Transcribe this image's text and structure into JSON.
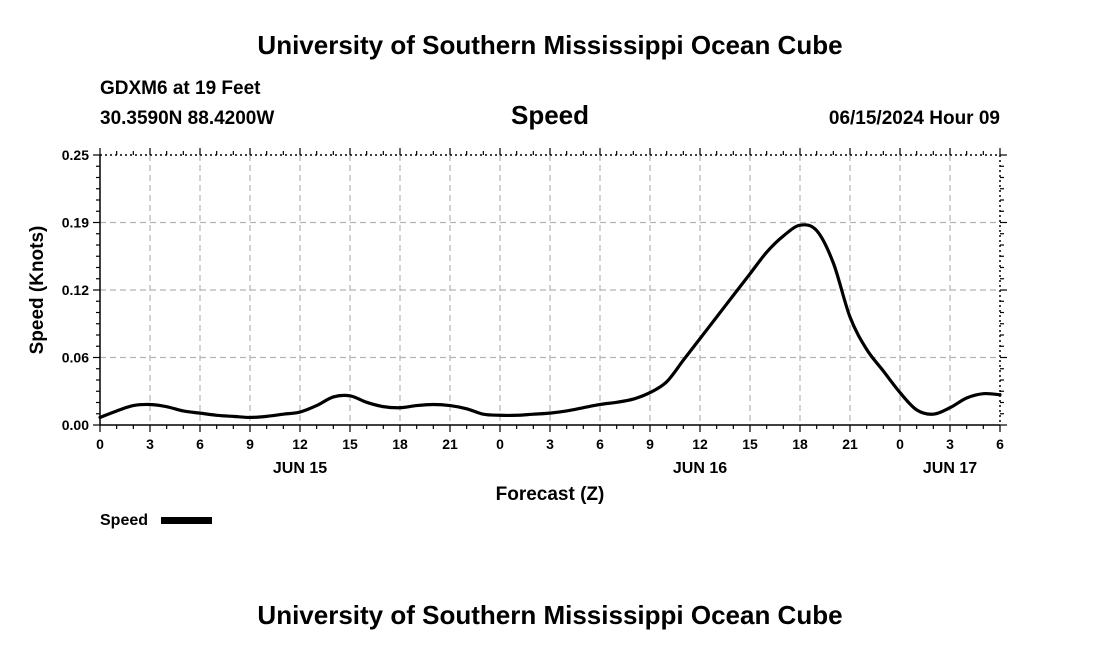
{
  "header": {
    "title": "University of Southern Mississippi Ocean Cube",
    "station": "GDXM6 at 19 Feet",
    "coordinates": "30.3590N  88.4200W",
    "datetime": "06/15/2024 Hour 09"
  },
  "footer": {
    "title": "University of Southern Mississippi Ocean Cube"
  },
  "chart_data": {
    "type": "line",
    "title": "Speed",
    "xlabel": "Forecast (Z)",
    "ylabel": "Speed (Knots)",
    "xlim": [
      0,
      54
    ],
    "ylim": [
      0,
      0.25
    ],
    "y_ticks": [
      "0.00",
      "0.06",
      "0.12",
      "0.19",
      "0.25"
    ],
    "x_ticks": [
      "0",
      "3",
      "6",
      "9",
      "12",
      "15",
      "18",
      "21",
      "0",
      "3",
      "6",
      "9",
      "12",
      "15",
      "18",
      "21",
      "0",
      "3",
      "6"
    ],
    "date_labels": [
      {
        "label": "JUN 15",
        "x": 12
      },
      {
        "label": "JUN 16",
        "x": 36
      },
      {
        "label": "JUN 17",
        "x": 51
      }
    ],
    "grid": true,
    "legend": {
      "label": "Speed",
      "position": "bottom-left"
    },
    "series": [
      {
        "name": "Speed",
        "x": [
          0,
          1,
          2,
          3,
          4,
          5,
          6,
          7,
          8,
          9,
          10,
          11,
          12,
          13,
          14,
          15,
          16,
          17,
          18,
          19,
          20,
          21,
          22,
          23,
          24,
          25,
          26,
          27,
          28,
          29,
          30,
          31,
          32,
          33,
          34,
          35,
          36,
          37,
          38,
          39,
          40,
          41,
          42,
          43,
          44,
          45,
          46,
          47,
          48,
          49,
          50,
          51,
          52,
          53,
          54
        ],
        "values": [
          0.007,
          0.013,
          0.018,
          0.019,
          0.017,
          0.013,
          0.011,
          0.009,
          0.008,
          0.007,
          0.008,
          0.01,
          0.012,
          0.018,
          0.026,
          0.027,
          0.021,
          0.017,
          0.016,
          0.018,
          0.019,
          0.018,
          0.015,
          0.01,
          0.009,
          0.009,
          0.01,
          0.011,
          0.013,
          0.016,
          0.019,
          0.021,
          0.024,
          0.03,
          0.04,
          0.06,
          0.08,
          0.1,
          0.12,
          0.14,
          0.16,
          0.175,
          0.185,
          0.18,
          0.15,
          0.1,
          0.07,
          0.05,
          0.03,
          0.014,
          0.01,
          0.016,
          0.025,
          0.029,
          0.028
        ]
      }
    ]
  }
}
